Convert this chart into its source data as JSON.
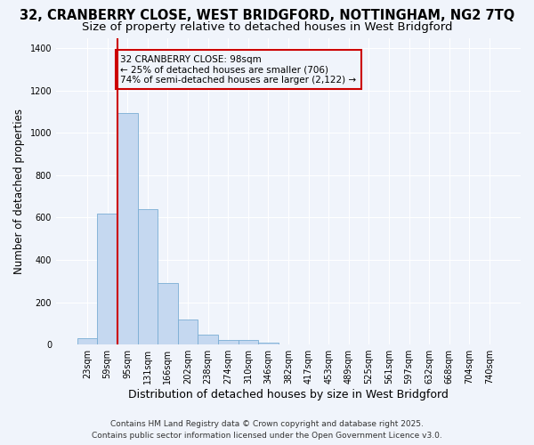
{
  "title": "32, CRANBERRY CLOSE, WEST BRIDGFORD, NOTTINGHAM, NG2 7TQ",
  "subtitle": "Size of property relative to detached houses in West Bridgford",
  "xlabel": "Distribution of detached houses by size in West Bridgford",
  "ylabel": "Number of detached properties",
  "categories": [
    "23sqm",
    "59sqm",
    "95sqm",
    "131sqm",
    "166sqm",
    "202sqm",
    "238sqm",
    "274sqm",
    "310sqm",
    "346sqm",
    "382sqm",
    "417sqm",
    "453sqm",
    "489sqm",
    "525sqm",
    "561sqm",
    "597sqm",
    "632sqm",
    "668sqm",
    "704sqm",
    "740sqm"
  ],
  "bar_heights": [
    30,
    620,
    1095,
    640,
    290,
    120,
    48,
    22,
    20,
    10,
    0,
    0,
    0,
    0,
    0,
    0,
    0,
    0,
    0,
    0,
    0
  ],
  "bar_color": "#c5d8f0",
  "bar_edge_color": "#7aadd4",
  "bg_color": "#f0f4fb",
  "grid_color": "#ffffff",
  "vline_color": "#cc0000",
  "vline_x_index": 1.5,
  "annotation_text": "32 CRANBERRY CLOSE: 98sqm\n← 25% of detached houses are smaller (706)\n74% of semi-detached houses are larger (2,122) →",
  "annotation_box_facecolor": "#f0f4fb",
  "annotation_box_edgecolor": "#cc0000",
  "footer_line1": "Contains HM Land Registry data © Crown copyright and database right 2025.",
  "footer_line2": "Contains public sector information licensed under the Open Government Licence v3.0.",
  "ylim": [
    0,
    1450
  ],
  "yticks": [
    0,
    200,
    400,
    600,
    800,
    1000,
    1200,
    1400
  ],
  "title_fontsize": 10.5,
  "subtitle_fontsize": 9.5,
  "ylabel_fontsize": 8.5,
  "xlabel_fontsize": 9,
  "tick_fontsize": 7,
  "annot_fontsize": 7.5,
  "footer_fontsize": 6.5
}
